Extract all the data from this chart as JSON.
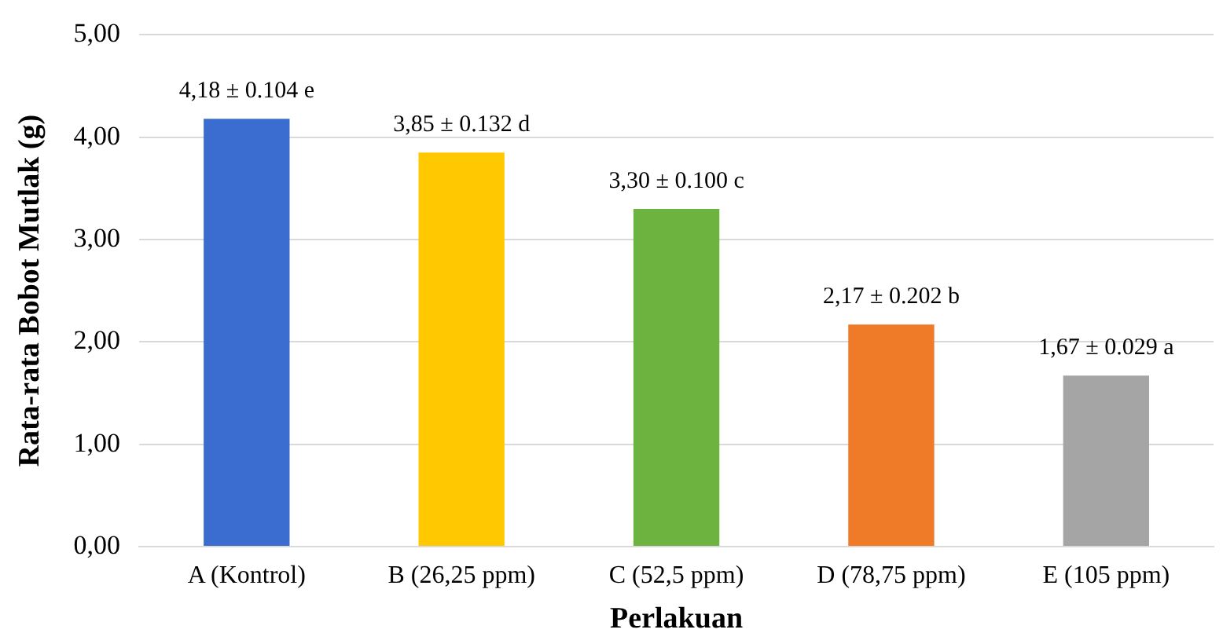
{
  "chart_data": {
    "type": "bar",
    "xlabel": "Perlakuan",
    "ylabel": "Rata-rata Bobot Mutlak (g)",
    "categories": [
      "A (Kontrol)",
      "B (26,25 ppm)",
      "C (52,5 ppm)",
      "D (78,75 ppm)",
      "E (105 ppm)"
    ],
    "values": [
      4.18,
      3.85,
      3.3,
      2.17,
      1.67
    ],
    "colors": [
      "#3a6dcf",
      "#ffc800",
      "#6db33f",
      "#ef7a28",
      "#a5a5a5"
    ],
    "value_labels": [
      "4,18 ± 0.104 e",
      "3,85 ± 0.132 d",
      "3,30 ± 0.100 c",
      "2,17 ± 0.202 b",
      "1,67 ± 0.029 a"
    ],
    "ylim": [
      0,
      5
    ],
    "yticks": [
      {
        "value": 0,
        "label": "0,00"
      },
      {
        "value": 1,
        "label": "1,00"
      },
      {
        "value": 2,
        "label": "2,00"
      },
      {
        "value": 3,
        "label": "3,00"
      },
      {
        "value": 4,
        "label": "4,00"
      },
      {
        "value": 5,
        "label": "5,00"
      }
    ],
    "grid": "y"
  }
}
